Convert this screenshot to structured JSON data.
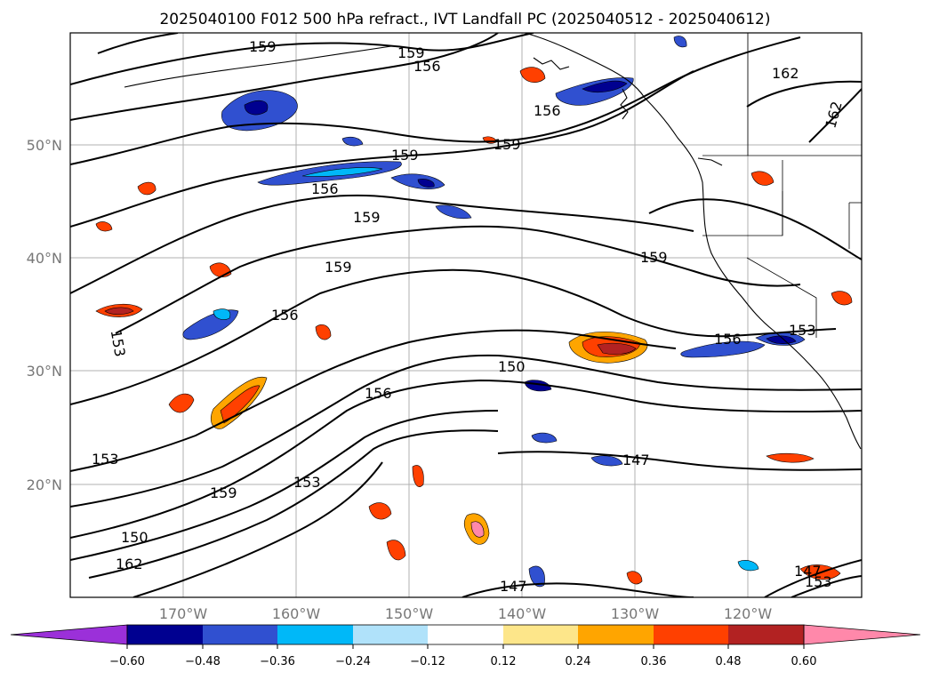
{
  "title": "2025040100 F012 500 hPa refract., IVT Landfall PC (2025040512 - 2025040612)",
  "map": {
    "lat_labels": [
      "50°N",
      "40°N",
      "30°N",
      "20°N"
    ],
    "lon_labels": [
      "170°W",
      "160°W",
      "150°W",
      "140°W",
      "130°W",
      "120°W"
    ],
    "contour_labels": [
      "159",
      "159",
      "159",
      "156",
      "156",
      "156",
      "159",
      "159",
      "156",
      "159",
      "159",
      "156",
      "153",
      "150",
      "156",
      "153",
      "153",
      "159",
      "150",
      "162",
      "147",
      "147",
      "147",
      "153",
      "153",
      "162",
      "162"
    ]
  },
  "colorbar": {
    "ticks": [
      "−0.60",
      "−0.48",
      "−0.36",
      "−0.24",
      "−0.12",
      "0.12",
      "0.24",
      "0.36",
      "0.48",
      "0.60"
    ],
    "colors": [
      "#9b30d9",
      "#000090",
      "#3050d0",
      "#00b8f8",
      "#b0e2fa",
      "#ffffff",
      "#fde68a",
      "#ffa500",
      "#ff4000",
      "#b22222",
      "#ff88aa"
    ]
  }
}
